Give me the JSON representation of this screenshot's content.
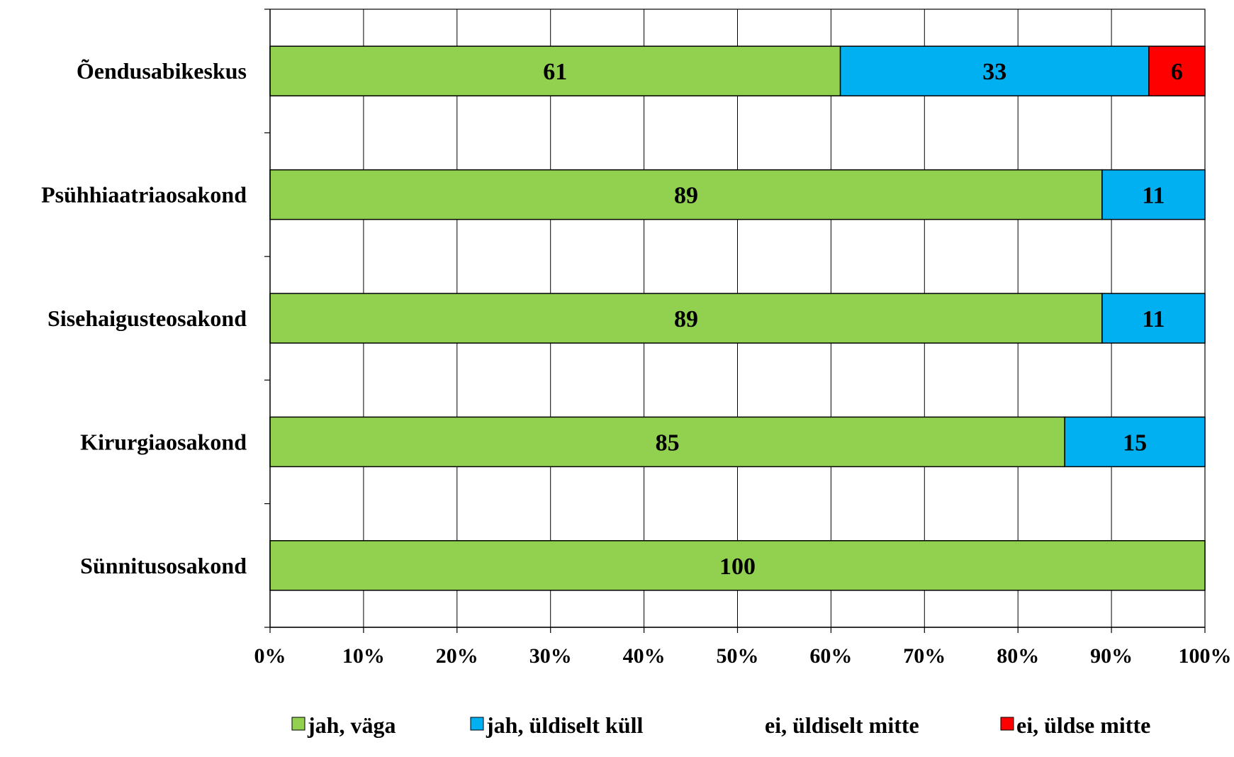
{
  "chart_data": {
    "type": "bar",
    "orientation": "horizontal",
    "stacked": true,
    "percent_axis": true,
    "categories": [
      "Õendusabikeskus",
      "Psühhiaatriaosakond",
      "Sisehaigusteosakond",
      "Kirurgiaosakond",
      "Sünnitusosakond"
    ],
    "series": [
      {
        "name": "jah, väga",
        "color": "#92d050",
        "values": [
          61,
          89,
          89,
          85,
          100
        ]
      },
      {
        "name": "jah, üldiselt küll",
        "color": "#00b0f0",
        "values": [
          33,
          11,
          11,
          15,
          0
        ]
      },
      {
        "name": "ei, üldiselt mitte",
        "color": "#ffffff",
        "values": [
          0,
          0,
          0,
          0,
          0
        ]
      },
      {
        "name": "ei, üldse mitte",
        "color": "#ff0000",
        "values": [
          6,
          0,
          0,
          0,
          0
        ]
      }
    ],
    "xticks": [
      "0%",
      "10%",
      "20%",
      "30%",
      "40%",
      "50%",
      "60%",
      "70%",
      "80%",
      "90%",
      "100%"
    ],
    "xlim": [
      0,
      100
    ],
    "grid": true,
    "legend": "bottom"
  }
}
